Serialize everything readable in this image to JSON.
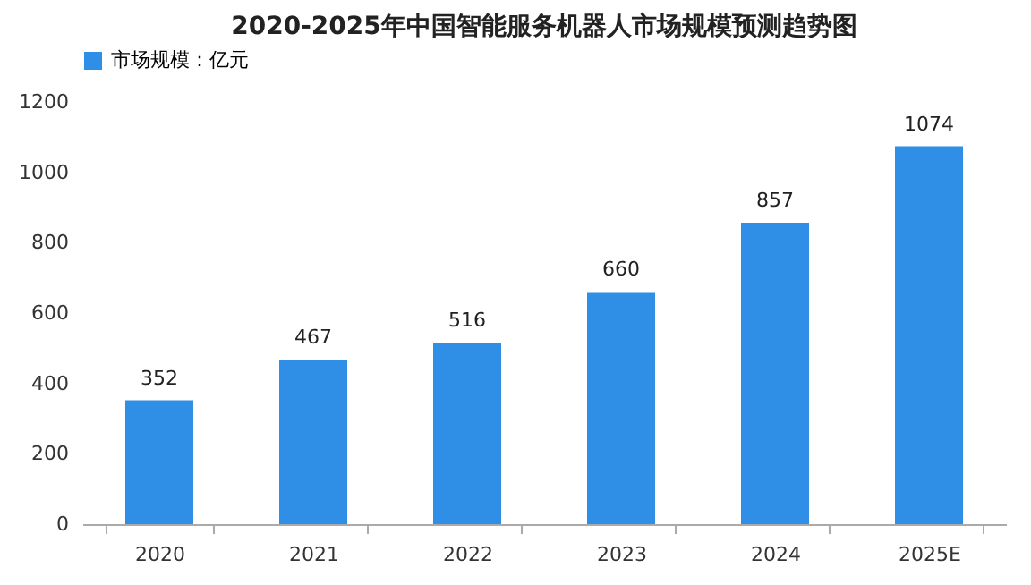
{
  "chart_data": {
    "type": "bar",
    "title": "2020-2025年中国智能服务机器人市场规模预测趋势图",
    "categories": [
      "2020",
      "2021",
      "2022",
      "2023",
      "2024",
      "2025E"
    ],
    "series": [
      {
        "name": "市场规模：亿元",
        "color": "#2f8fe6",
        "values": [
          352,
          467,
          516,
          660,
          857,
          1074
        ]
      }
    ],
    "ylim": [
      0,
      1200
    ],
    "yticks": [
      0,
      200,
      400,
      600,
      800,
      1000,
      1200
    ],
    "data_labels": true,
    "legend": "top",
    "grid": false
  }
}
